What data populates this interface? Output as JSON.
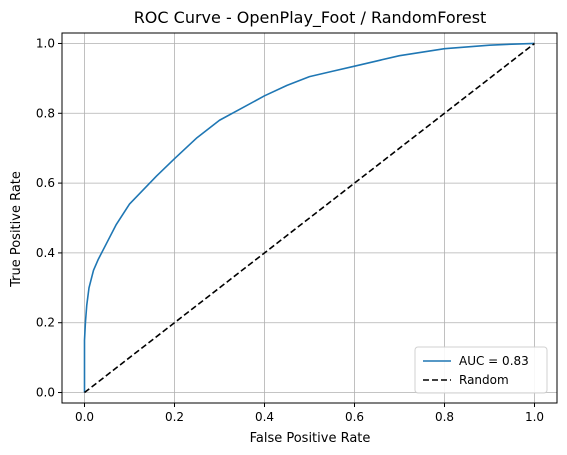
{
  "chart_data": {
    "type": "line",
    "title": "ROC Curve - OpenPlay_Foot / RandomForest",
    "xlabel": "False Positive Rate",
    "ylabel": "True Positive Rate",
    "xlim": [
      -0.05,
      1.05
    ],
    "ylim": [
      -0.03,
      1.03
    ],
    "xticks": [
      0.0,
      0.2,
      0.4,
      0.6,
      0.8,
      1.0
    ],
    "yticks": [
      0.0,
      0.2,
      0.4,
      0.6,
      0.8,
      1.0
    ],
    "xtick_labels": [
      "0.0",
      "0.2",
      "0.4",
      "0.6",
      "0.8",
      "1.0"
    ],
    "ytick_labels": [
      "0.0",
      "0.2",
      "0.4",
      "0.6",
      "0.8",
      "1.0"
    ],
    "grid": true,
    "legend_position": "lower-right",
    "series": [
      {
        "name": "AUC = 0.83",
        "color": "#1f77b4",
        "style": "solid",
        "x": [
          0.0,
          0.0,
          0.002,
          0.005,
          0.01,
          0.02,
          0.03,
          0.05,
          0.07,
          0.1,
          0.13,
          0.16,
          0.2,
          0.25,
          0.3,
          0.35,
          0.4,
          0.45,
          0.5,
          0.55,
          0.6,
          0.65,
          0.7,
          0.75,
          0.8,
          0.85,
          0.9,
          0.95,
          1.0
        ],
        "y": [
          0.0,
          0.15,
          0.2,
          0.25,
          0.3,
          0.35,
          0.38,
          0.43,
          0.48,
          0.54,
          0.58,
          0.62,
          0.67,
          0.73,
          0.78,
          0.815,
          0.85,
          0.88,
          0.905,
          0.92,
          0.935,
          0.95,
          0.965,
          0.975,
          0.985,
          0.99,
          0.995,
          0.998,
          1.0
        ]
      },
      {
        "name": "Random",
        "color": "#000000",
        "style": "dashed",
        "x": [
          0.0,
          1.0
        ],
        "y": [
          0.0,
          1.0
        ]
      }
    ]
  }
}
